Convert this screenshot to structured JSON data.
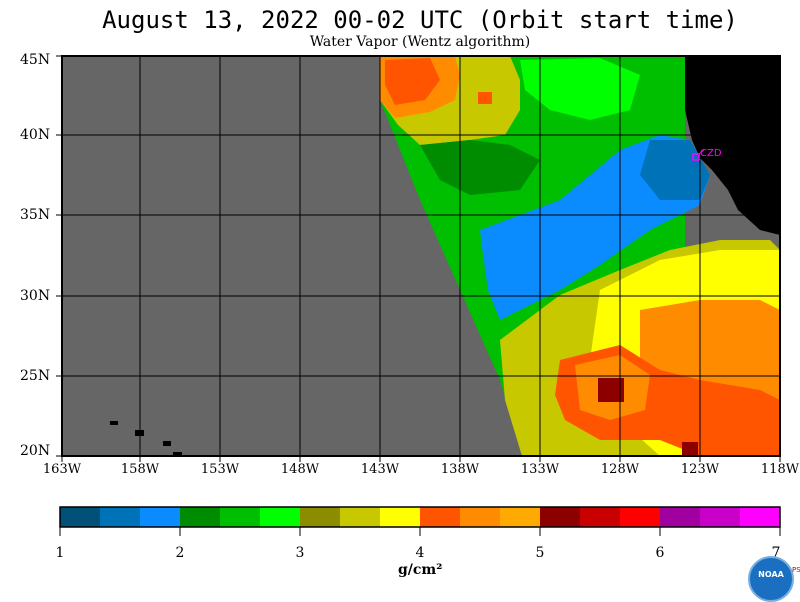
{
  "header": {
    "title": "August 13, 2022  00-02 UTC  (Orbit start time)",
    "subtitle": "Water Vapor (Wentz algorithm)"
  },
  "map": {
    "lat_labels": [
      "45N",
      "40N",
      "35N",
      "30N",
      "25N",
      "20N"
    ],
    "lon_labels": [
      "163W",
      "158W",
      "153W",
      "148W",
      "143W",
      "138W",
      "133W",
      "128W",
      "123W",
      "118W"
    ],
    "station_label": "CZD",
    "colors": {
      "no_data": "#666666",
      "land": "#000000",
      "station": "#ff00ff"
    }
  },
  "colorbar": {
    "tick_labels": [
      "1",
      "2",
      "3",
      "4",
      "5",
      "6",
      "7"
    ],
    "units": "g/cm²",
    "colors": [
      "#005077",
      "#0073b8",
      "#0a8cff",
      "#008c00",
      "#00be00",
      "#00ff00",
      "#8c8c00",
      "#c8c800",
      "#ffff00",
      "#ff5500",
      "#ff8c00",
      "#ffaa00",
      "#8c0000",
      "#c80000",
      "#ff0000",
      "#a000a0",
      "#c800c8",
      "#ff00ff"
    ]
  },
  "logo": {
    "text": "NOAA",
    "side_text": "PSL"
  }
}
